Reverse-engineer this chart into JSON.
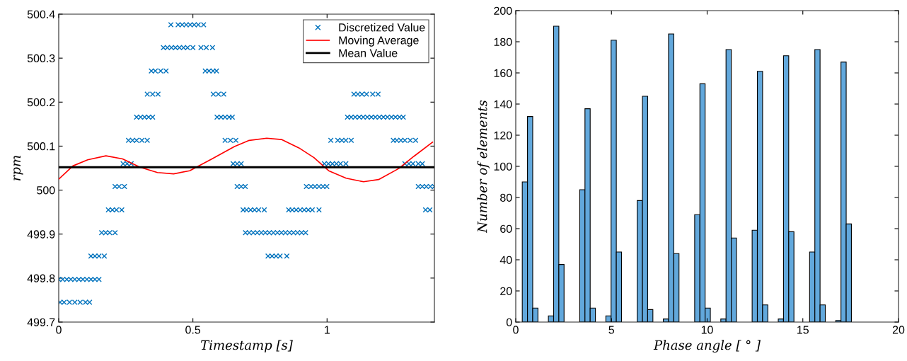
{
  "chart_data": [
    {
      "type": "scatter",
      "xlabel": "Timestamp [s]",
      "ylabel": "rpm",
      "xlim": [
        0,
        1.4
      ],
      "xticks": [
        0,
        0.5,
        1
      ],
      "ylim": [
        499.7,
        500.4
      ],
      "yticks": [
        499.7,
        499.8,
        499.9,
        500,
        500.1,
        500.2,
        500.3,
        500.4
      ],
      "grid": false,
      "legend": "top right",
      "series": [
        {
          "name": "Discretized Value",
          "type": "scatter",
          "color": "#0072bd",
          "marker": "cross",
          "x": [
            0.0,
            0.015,
            0.03,
            0.045,
            0.06,
            0.075,
            0.09,
            0.105,
            0.12,
            0.135,
            0.15,
            0.005,
            0.02,
            0.04,
            0.06,
            0.08,
            0.1,
            0.115,
            0.12,
            0.135,
            0.15,
            0.17,
            0.16,
            0.175,
            0.19,
            0.21,
            0.185,
            0.2,
            0.215,
            0.235,
            0.21,
            0.225,
            0.245,
            0.24,
            0.255,
            0.27,
            0.26,
            0.275,
            0.29,
            0.31,
            0.33,
            0.29,
            0.305,
            0.32,
            0.335,
            0.35,
            0.33,
            0.35,
            0.37,
            0.345,
            0.36,
            0.38,
            0.4,
            0.39,
            0.405,
            0.42,
            0.435,
            0.45,
            0.465,
            0.48,
            0.5,
            0.53,
            0.55,
            0.573,
            0.418,
            0.445,
            0.46,
            0.475,
            0.49,
            0.505,
            0.52,
            0.54,
            0.546,
            0.56,
            0.575,
            0.588,
            0.576,
            0.595,
            0.615,
            0.59,
            0.605,
            0.62,
            0.635,
            0.647,
            0.62,
            0.64,
            0.66,
            0.65,
            0.665,
            0.68,
            0.665,
            0.68,
            0.695,
            0.687,
            0.7,
            0.715,
            0.73,
            0.745,
            0.766,
            0.696,
            0.71,
            0.725,
            0.74,
            0.755,
            0.77,
            0.785,
            0.8,
            0.815,
            0.83,
            0.845,
            0.86,
            0.875,
            0.89,
            0.905,
            0.92,
            0.78,
            0.795,
            0.81,
            0.825,
            0.85,
            0.857,
            0.87,
            0.885,
            0.9,
            0.915,
            0.93,
            0.945,
            0.97,
            0.923,
            0.94,
            0.955,
            0.97,
            0.985,
            0.999,
            0.99,
            1.005,
            1.02,
            1.035,
            1.05,
            1.07,
            1.014,
            1.04,
            1.055,
            1.07,
            1.09,
            1.076,
            1.09,
            1.105,
            1.12,
            1.135,
            1.15,
            1.165,
            1.18,
            1.195,
            1.21,
            1.225,
            1.24,
            1.255,
            1.27,
            1.284,
            1.1,
            1.115,
            1.13,
            1.147,
            1.17,
            1.19,
            1.247,
            1.26,
            1.275,
            1.29,
            1.31,
            1.33,
            1.29,
            1.305,
            1.32,
            1.34,
            1.355,
            1.34,
            1.355,
            1.37,
            1.385,
            1.4,
            1.367,
            1.383
          ],
          "values": [
            499.797,
            499.797,
            499.797,
            499.797,
            499.797,
            499.797,
            499.797,
            499.797,
            499.797,
            499.797,
            499.797,
            499.745,
            499.745,
            499.745,
            499.745,
            499.745,
            499.745,
            499.745,
            499.85,
            499.85,
            499.85,
            499.85,
            499.903,
            499.903,
            499.903,
            499.903,
            499.955,
            499.955,
            499.955,
            499.955,
            500.008,
            500.008,
            500.008,
            500.06,
            500.06,
            500.06,
            500.113,
            500.113,
            500.113,
            500.113,
            500.113,
            500.166,
            500.166,
            500.166,
            500.166,
            500.166,
            500.218,
            500.218,
            500.218,
            500.271,
            500.271,
            500.271,
            500.271,
            500.324,
            500.324,
            500.324,
            500.324,
            500.324,
            500.324,
            500.324,
            500.324,
            500.324,
            500.324,
            500.324,
            500.376,
            500.376,
            500.376,
            500.376,
            500.376,
            500.376,
            500.376,
            500.376,
            500.271,
            500.271,
            500.271,
            500.271,
            500.218,
            500.218,
            500.218,
            500.166,
            500.166,
            500.166,
            500.166,
            500.166,
            500.113,
            500.113,
            500.113,
            500.06,
            500.06,
            500.06,
            500.008,
            500.008,
            500.008,
            499.955,
            499.955,
            499.955,
            499.955,
            499.955,
            499.955,
            499.903,
            499.903,
            499.903,
            499.903,
            499.903,
            499.903,
            499.903,
            499.903,
            499.903,
            499.903,
            499.903,
            499.903,
            499.903,
            499.903,
            499.903,
            499.903,
            499.85,
            499.85,
            499.85,
            499.85,
            499.85,
            499.955,
            499.955,
            499.955,
            499.955,
            499.955,
            499.955,
            499.955,
            499.955,
            500.008,
            500.008,
            500.008,
            500.008,
            500.008,
            500.008,
            500.06,
            500.06,
            500.06,
            500.06,
            500.06,
            500.06,
            500.113,
            500.113,
            500.113,
            500.113,
            500.113,
            500.166,
            500.166,
            500.166,
            500.166,
            500.166,
            500.166,
            500.166,
            500.166,
            500.166,
            500.166,
            500.166,
            500.166,
            500.166,
            500.166,
            500.166,
            500.218,
            500.218,
            500.218,
            500.218,
            500.218,
            500.218,
            500.113,
            500.113,
            500.113,
            500.113,
            500.113,
            500.113,
            500.06,
            500.06,
            500.06,
            500.06,
            500.06,
            500.008,
            500.008,
            500.008,
            500.008,
            500.008,
            499.955,
            499.955
          ]
        },
        {
          "name": "Moving Average",
          "type": "line",
          "color": "#ff0000",
          "x": [
            0,
            0.053,
            0.108,
            0.176,
            0.238,
            0.303,
            0.368,
            0.428,
            0.488,
            0.571,
            0.655,
            0.71,
            0.775,
            0.83,
            0.895,
            0.951,
            1.006,
            1.071,
            1.136,
            1.192,
            1.267,
            1.324,
            1.393
          ],
          "values": [
            500.025,
            500.055,
            500.069,
            500.078,
            500.071,
            500.052,
            500.04,
            500.037,
            500.044,
            500.071,
            500.099,
            500.113,
            500.118,
            500.115,
            500.096,
            500.074,
            500.044,
            500.027,
            500.019,
            500.024,
            500.049,
            500.077,
            500.109
          ]
        },
        {
          "name": "Mean Value",
          "type": "line",
          "color": "#000000",
          "x": [
            0,
            1.4
          ],
          "values": [
            500.052,
            500.052
          ]
        }
      ]
    },
    {
      "type": "histogram",
      "xlabel": "Phase angle [ ° ]",
      "ylabel": "Number of elements",
      "xlim": [
        0,
        20
      ],
      "xticks": [
        0,
        5,
        10,
        15,
        20
      ],
      "ylim": [
        0,
        200
      ],
      "yticks": [
        0,
        20,
        40,
        60,
        80,
        100,
        120,
        140,
        160,
        180,
        200
      ],
      "grid": false,
      "color": "#62a8dc",
      "bins": [
        0.34,
        0.613,
        0.886,
        1.159,
        1.432,
        1.705,
        1.978,
        2.251,
        2.524,
        2.797,
        3.07,
        3.343,
        3.616,
        3.889,
        4.162,
        4.435,
        4.708,
        4.981,
        5.254,
        5.527,
        5.8,
        6.073,
        6.346,
        6.619,
        6.892,
        7.165,
        7.438,
        7.711,
        7.984,
        8.257,
        8.53,
        8.803,
        9.076,
        9.349,
        9.622,
        9.895,
        10.168,
        10.441,
        10.714,
        10.987,
        11.26,
        11.533,
        11.806,
        12.079,
        12.352,
        12.625,
        12.898,
        13.171,
        13.444,
        13.717,
        13.99,
        14.263,
        14.536,
        14.809,
        15.082,
        15.355,
        15.628,
        15.901,
        16.174,
        16.447,
        16.72,
        16.993,
        17.266,
        17.539
      ],
      "values": [
        90,
        132,
        9,
        0,
        0,
        4,
        190,
        37,
        0,
        0,
        0,
        85,
        137,
        9,
        0,
        0,
        4,
        181,
        45,
        0,
        0,
        0,
        78,
        145,
        8,
        0,
        0,
        2,
        185,
        44,
        0,
        0,
        0,
        69,
        153,
        9,
        0,
        0,
        2,
        175,
        54,
        0,
        0,
        0,
        59,
        161,
        11,
        0,
        0,
        2,
        171,
        58,
        0,
        0,
        0,
        45,
        175,
        11,
        0,
        0,
        1,
        167,
        63
      ]
    }
  ]
}
